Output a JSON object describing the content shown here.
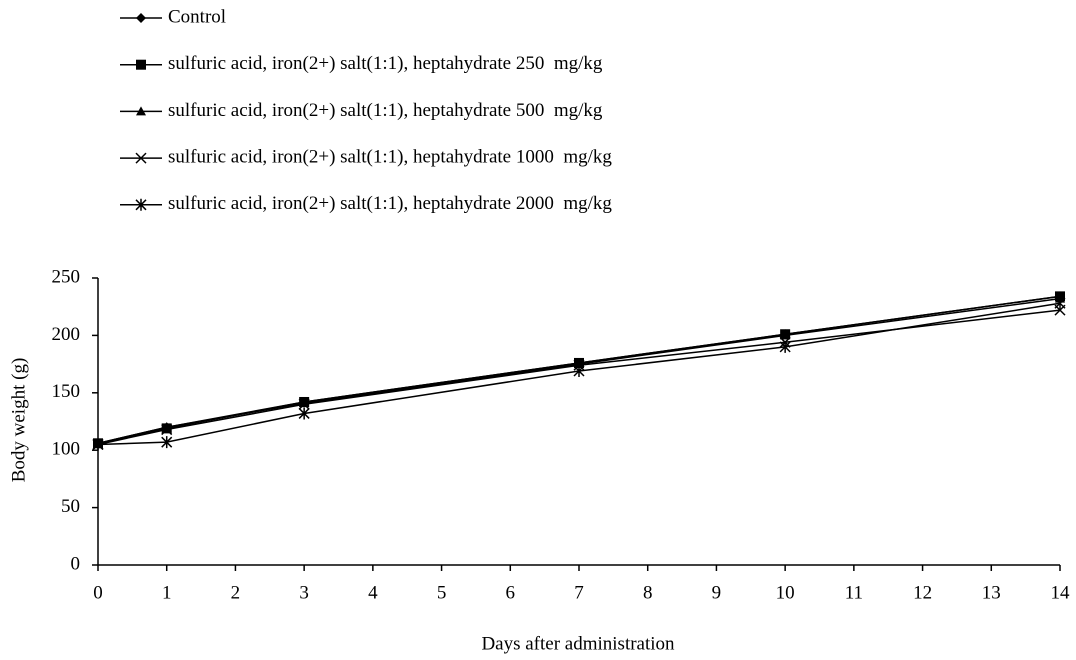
{
  "chart_data": {
    "type": "line",
    "x_label": "Days after administration",
    "y_label": "Body weight (g)",
    "x": [
      0,
      1,
      3,
      7,
      10,
      14
    ],
    "series": [
      {
        "name": "Control",
        "color": "#000000",
        "marker": "diamond",
        "values": [
          106,
          120,
          142,
          176,
          201,
          234
        ]
      },
      {
        "name": "sulfuric acid, iron(2+) salt(1:1), heptahydrate 250  mg/kg",
        "color": "#000000",
        "marker": "square",
        "values": [
          106,
          119,
          142,
          176,
          201,
          234
        ]
      },
      {
        "name": "sulfuric acid, iron(2+) salt(1:1), heptahydrate 500  mg/kg",
        "color": "#000000",
        "marker": "triangle",
        "values": [
          106,
          120,
          141,
          175,
          200,
          232
        ]
      },
      {
        "name": "sulfuric acid, iron(2+) salt(1:1), heptahydrate 1000  mg/kg",
        "color": "#000000",
        "marker": "cross",
        "values": [
          105,
          118,
          140,
          174,
          194,
          222
        ]
      },
      {
        "name": "sulfuric acid, iron(2+) salt(1:1), heptahydrate 2000  mg/kg",
        "color": "#000000",
        "marker": "star",
        "values": [
          105,
          107,
          132,
          169,
          190,
          228
        ]
      }
    ],
    "xlim": [
      0,
      14
    ],
    "xticks": [
      0,
      1,
      2,
      3,
      4,
      5,
      6,
      7,
      8,
      9,
      10,
      11,
      12,
      13,
      14
    ],
    "ylim": [
      0,
      250
    ],
    "yticks": [
      0,
      50,
      100,
      150,
      200,
      250
    ],
    "grid": false,
    "legend": "top-left"
  }
}
